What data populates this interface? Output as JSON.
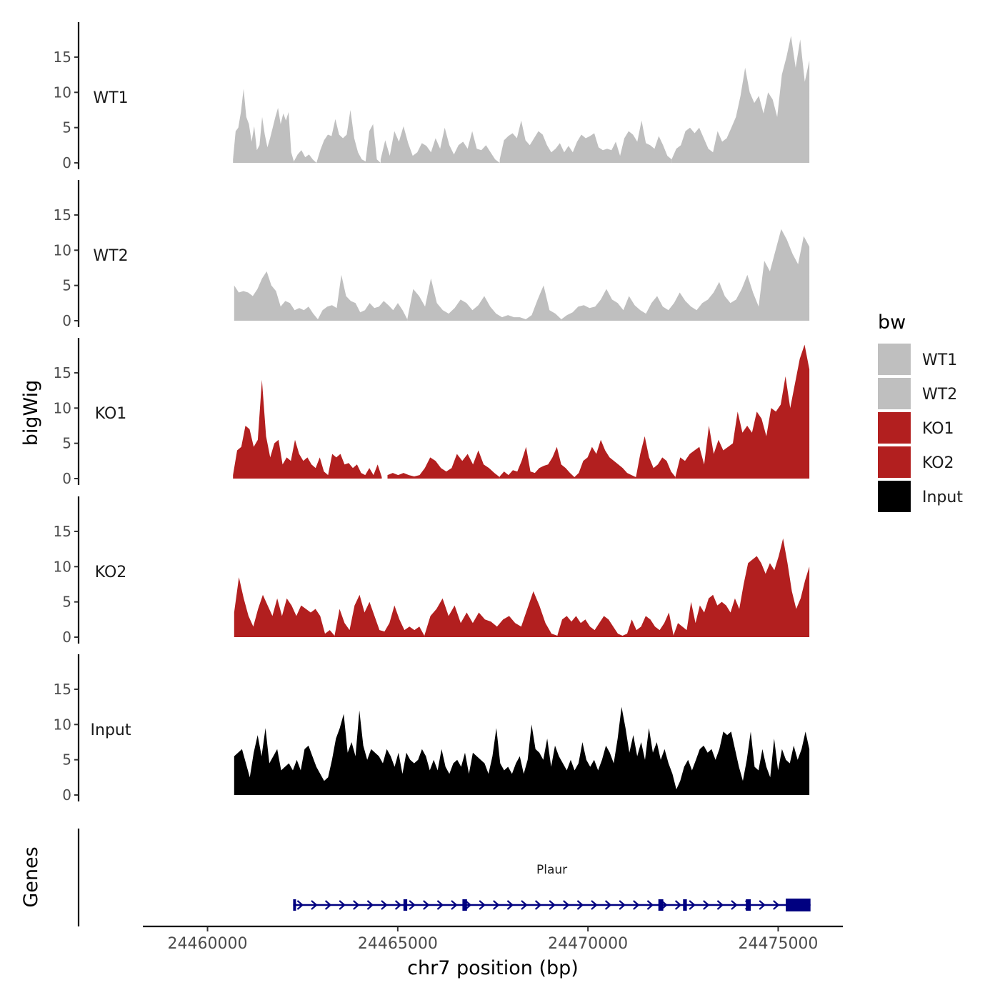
{
  "chart_data": {
    "type": "area",
    "panel_axis_title": "bigWig",
    "genes_axis_title": "Genes",
    "xlabel": "chr7 position (bp)",
    "xlim": [
      24458300,
      24476700
    ],
    "x_ticks": [
      24460000,
      24465000,
      24470000,
      24475000
    ],
    "x_tick_labels": [
      "24460000",
      "24465000",
      "24470000",
      "24475000"
    ],
    "ylim": [
      0,
      20
    ],
    "y_ticks": [
      0,
      5,
      10,
      15
    ],
    "y_tick_labels": [
      "0",
      "5",
      "10",
      "15"
    ],
    "legend": {
      "title": "bw",
      "position": "right"
    },
    "tracks": [
      {
        "name": "WT1",
        "color": "#bfbfbf",
        "segments": [
          {
            "x_start": 24460670,
            "x_end": 24462270,
            "values": [
              0.5,
              4.5,
              5.0,
              7.2,
              10.5,
              6.5,
              5.5,
              3.0,
              5.2,
              1.8,
              2.5,
              6.5,
              4.0,
              2.2,
              3.5,
              5.0,
              6.5,
              7.8,
              5.5,
              7.0,
              6.0,
              7.2,
              1.5,
              0.2
            ]
          },
          {
            "x_start": 24462270,
            "x_end": 24464550,
            "values": [
              0.2,
              1.2,
              1.8,
              0.8,
              1.2,
              0.5,
              0.0,
              1.8,
              3.2,
              4.0,
              3.8,
              6.2,
              4.0,
              3.5,
              4.0,
              7.5,
              3.5,
              1.5,
              0.5,
              0.2,
              4.5,
              5.5,
              0.5,
              0.0
            ]
          },
          {
            "x_start": 24464550,
            "x_end": 24467680,
            "values": [
              0.5,
              3.2,
              1.0,
              4.5,
              3.0,
              5.2,
              2.8,
              1.0,
              1.5,
              2.8,
              2.4,
              1.5,
              3.5,
              2.0,
              5.0,
              2.5,
              1.2,
              2.5,
              3.0,
              2.0,
              4.5,
              2.0,
              1.8,
              2.5,
              1.5,
              0.5,
              0.0
            ]
          },
          {
            "x_start": 24467680,
            "x_end": 24472200,
            "values": [
              0.5,
              3.2,
              3.8,
              4.2,
              3.5,
              6.0,
              3.2,
              2.5,
              3.5,
              4.5,
              4.0,
              2.5,
              1.5,
              2.0,
              2.8,
              1.5,
              2.4,
              1.5,
              3.0,
              4.0,
              3.5,
              3.8,
              4.2,
              2.2,
              1.8,
              2.0,
              1.8,
              3.0,
              1.0,
              3.5,
              4.5,
              4.0,
              3.0,
              6.0,
              2.8,
              2.5,
              2.0,
              3.8,
              2.5,
              1.0,
              0.5
            ]
          },
          {
            "x_start": 24472200,
            "x_end": 24475820,
            "values": [
              0.5,
              2.0,
              2.5,
              4.5,
              5.0,
              4.2,
              5.0,
              3.5,
              2.0,
              1.5,
              4.5,
              3.0,
              3.5,
              5.0,
              6.5,
              9.5,
              13.5,
              10.0,
              8.5,
              9.5,
              7.0,
              10.0,
              9.0,
              6.5,
              12.5,
              15.0,
              18.0,
              13.5,
              17.5,
              11.5,
              14.5
            ]
          }
        ]
      },
      {
        "name": "WT2",
        "color": "#bfbfbf",
        "segments": [
          {
            "x_start": 24460700,
            "x_end": 24462900,
            "values": [
              5.0,
              4.0,
              4.2,
              4.0,
              3.5,
              4.5,
              6.0,
              7.0,
              5.0,
              4.2,
              2.0,
              2.8,
              2.5,
              1.5,
              1.8,
              1.5,
              2.0,
              1.0,
              0.2
            ]
          },
          {
            "x_start": 24462900,
            "x_end": 24465250,
            "values": [
              0.2,
              1.5,
              2.0,
              2.2,
              1.8,
              6.5,
              3.5,
              2.8,
              2.5,
              1.2,
              1.5,
              2.5,
              1.8,
              2.0,
              2.8,
              2.2,
              1.5,
              2.5,
              1.5,
              0.2
            ]
          },
          {
            "x_start": 24465250,
            "x_end": 24469300,
            "values": [
              0.2,
              4.5,
              3.5,
              2.0,
              6.0,
              2.5,
              1.5,
              1.0,
              1.8,
              3.0,
              2.5,
              1.5,
              2.2,
              3.5,
              2.0,
              1.0,
              0.5,
              0.8,
              0.5,
              0.5,
              0.2,
              0.8,
              3.0,
              5.0,
              1.5,
              1.0,
              0.2
            ]
          },
          {
            "x_start": 24469300,
            "x_end": 24475820,
            "values": [
              0.2,
              0.8,
              1.2,
              2.0,
              2.2,
              1.8,
              2.0,
              3.0,
              4.5,
              3.0,
              2.5,
              1.5,
              3.5,
              2.2,
              1.5,
              1.0,
              2.5,
              3.5,
              2.0,
              1.5,
              2.5,
              4.0,
              2.8,
              2.0,
              1.5,
              2.5,
              3.0,
              4.0,
              5.5,
              3.5,
              2.5,
              3.0,
              4.5,
              6.5,
              4.0,
              2.0,
              8.5,
              7.0,
              10.0,
              13.0,
              11.5,
              9.5,
              8.0,
              12.0,
              10.5
            ]
          }
        ]
      },
      {
        "name": "KO1",
        "color": "#b21f1f",
        "segments": [
          {
            "x_start": 24460670,
            "x_end": 24464580,
            "values": [
              0.5,
              4.0,
              4.5,
              7.5,
              7.0,
              4.5,
              5.5,
              14.0,
              6.0,
              3.0,
              5.0,
              5.5,
              2.0,
              3.0,
              2.5,
              5.5,
              3.5,
              2.5,
              3.0,
              2.0,
              1.5,
              3.0,
              1.0,
              0.5,
              3.5,
              3.0,
              3.5,
              2.0,
              2.2,
              1.5,
              2.0,
              0.8,
              0.5,
              1.5,
              0.5,
              2.0,
              0.2
            ]
          },
          {
            "x_start": 24464730,
            "x_end": 24467680,
            "values": [
              0.5,
              0.8,
              0.5,
              0.8,
              0.5,
              0.3,
              0.5,
              1.5,
              3.0,
              2.5,
              1.5,
              1.0,
              1.5,
              3.5,
              2.5,
              3.5,
              2.0,
              4.0,
              2.0,
              1.5,
              0.8,
              0.2
            ]
          },
          {
            "x_start": 24467680,
            "x_end": 24472300,
            "values": [
              0.3,
              1.0,
              0.5,
              1.2,
              1.0,
              2.5,
              4.5,
              1.0,
              0.8,
              1.5,
              1.8,
              2.0,
              3.0,
              4.5,
              2.0,
              1.5,
              0.8,
              0.2,
              0.8,
              2.5,
              3.0,
              4.5,
              3.5,
              5.5,
              4.0,
              3.0,
              2.5,
              2.0,
              1.5,
              0.8,
              0.5,
              0.2,
              3.5,
              6.0,
              3.0,
              1.5,
              2.0,
              3.0,
              2.5,
              1.0,
              0.2
            ]
          },
          {
            "x_start": 24472300,
            "x_end": 24475820,
            "values": [
              0.3,
              3.0,
              2.5,
              3.5,
              4.0,
              4.5,
              2.0,
              7.5,
              3.5,
              5.5,
              4.0,
              4.5,
              5.0,
              9.5,
              6.5,
              7.5,
              6.5,
              9.5,
              8.5,
              6.0,
              10.0,
              9.5,
              10.5,
              14.5,
              10.0,
              13.5,
              17.0,
              19.0,
              15.5
            ]
          }
        ]
      },
      {
        "name": "KO2",
        "color": "#b21f1f",
        "segments": [
          {
            "x_start": 24460700,
            "x_end": 24463340,
            "values": [
              3.5,
              8.5,
              5.5,
              3.0,
              1.5,
              4.0,
              6.0,
              4.5,
              3.0,
              5.5,
              3.0,
              5.5,
              4.5,
              3.0,
              4.5,
              4.0,
              3.5,
              4.0,
              3.0,
              0.5,
              1.0,
              0.2
            ]
          },
          {
            "x_start": 24463340,
            "x_end": 24465700,
            "values": [
              0.2,
              4.0,
              2.0,
              1.0,
              4.5,
              6.0,
              3.5,
              5.0,
              3.0,
              1.0,
              0.8,
              2.0,
              4.5,
              2.5,
              1.0,
              1.5,
              1.0,
              1.5,
              0.2
            ]
          },
          {
            "x_start": 24465700,
            "x_end": 24469200,
            "values": [
              0.2,
              3.0,
              4.0,
              5.5,
              3.0,
              4.5,
              2.0,
              3.5,
              2.0,
              3.5,
              2.5,
              2.2,
              1.5,
              2.5,
              3.0,
              2.0,
              1.5,
              4.0,
              6.5,
              4.5,
              2.0,
              0.5,
              0.2
            ]
          },
          {
            "x_start": 24469200,
            "x_end": 24472250,
            "values": [
              0.3,
              2.5,
              3.0,
              2.2,
              3.0,
              2.0,
              2.5,
              1.5,
              1.0,
              2.0,
              3.0,
              2.5,
              1.5,
              0.5,
              0.2,
              0.5,
              2.5,
              1.0,
              1.5,
              3.0,
              2.5,
              1.5,
              1.0,
              2.0,
              3.5,
              0.2
            ]
          },
          {
            "x_start": 24472250,
            "x_end": 24475820,
            "values": [
              0.3,
              2.0,
              1.5,
              1.0,
              5.0,
              2.0,
              4.5,
              3.5,
              5.5,
              6.0,
              4.5,
              5.0,
              4.5,
              3.5,
              5.5,
              4.0,
              7.5,
              10.5,
              11.0,
              11.5,
              10.5,
              9.0,
              10.5,
              9.5,
              11.5,
              14.0,
              10.5,
              6.5,
              4.0,
              5.5,
              8.0,
              10.0
            ]
          }
        ]
      },
      {
        "name": "Input",
        "color": "#000000",
        "segments": [
          {
            "x_start": 24460700,
            "x_end": 24475820,
            "values": [
              5.5,
              6.0,
              6.5,
              4.5,
              2.5,
              6.0,
              8.5,
              5.5,
              9.5,
              4.5,
              5.5,
              6.5,
              3.5,
              4.0,
              4.5,
              3.5,
              5.0,
              3.5,
              6.5,
              7.0,
              5.5,
              4.0,
              3.0,
              2.0,
              2.5,
              5.0,
              8.0,
              9.5,
              11.5,
              6.0,
              7.5,
              5.5,
              12.0,
              7.0,
              5.0,
              6.5,
              6.0,
              5.5,
              4.5,
              6.5,
              5.5,
              4.0,
              6.0,
              3.0,
              6.0,
              5.0,
              4.5,
              5.0,
              6.5,
              5.5,
              3.5,
              5.0,
              3.5,
              6.5,
              4.0,
              3.0,
              4.5,
              5.0,
              4.0,
              6.0,
              3.0,
              6.0,
              5.5,
              5.0,
              4.5,
              3.0,
              5.5,
              9.5,
              4.5,
              3.5,
              4.0,
              3.0,
              4.5,
              5.5,
              3.0,
              5.0,
              10.0,
              6.5,
              6.0,
              5.0,
              8.0,
              4.0,
              7.0,
              5.5,
              4.5,
              3.5,
              5.0,
              3.5,
              4.5,
              7.5,
              5.0,
              4.0,
              5.0,
              3.5,
              5.0,
              7.0,
              6.0,
              4.5,
              8.0,
              12.5,
              9.5,
              6.0,
              8.5,
              5.5,
              7.5,
              5.0,
              9.5,
              6.0,
              7.5,
              5.0,
              6.5,
              4.5,
              3.0,
              0.8,
              2.0,
              4.0,
              5.0,
              3.5,
              5.0,
              6.5,
              7.0,
              6.0,
              6.5,
              5.0,
              6.5,
              9.0,
              8.5,
              9.0,
              6.5,
              4.0,
              2.0,
              5.0,
              9.0,
              4.0,
              3.5,
              6.5,
              4.0,
              2.5,
              8.0,
              3.5,
              6.5,
              5.0,
              4.5,
              7.0,
              5.0,
              6.5,
              9.0,
              6.5
            ]
          }
        ]
      }
    ],
    "gene": {
      "name": "Plaur",
      "color": "#000080",
      "x_start": 24462250,
      "x_end": 24475850,
      "strand": "+",
      "exons": [
        [
          24462250,
          24462290
        ],
        [
          24465150,
          24465250
        ],
        [
          24466700,
          24466820
        ],
        [
          24471850,
          24471980
        ],
        [
          24472500,
          24472600
        ],
        [
          24474150,
          24474280
        ],
        [
          24475200,
          24475850
        ]
      ]
    }
  }
}
